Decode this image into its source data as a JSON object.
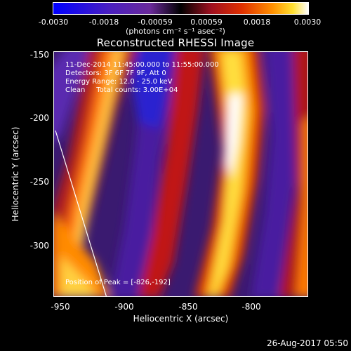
{
  "colorbar": {
    "ticks": [
      "-0.0030",
      "-0.0018",
      "-0.00059",
      "0.00059",
      "0.0018",
      "0.0030"
    ],
    "units": "(photons cm⁻² s⁻¹ asec⁻²)"
  },
  "title": "Reconstructed RHESSI Image",
  "info": {
    "time_range": "11-Dec-2014 11:45:00.000 to 11:55:00.000",
    "detectors": "Detectors: 3F 6F 7F 9F, Att 0",
    "energy": "Energy Range: 12.0 - 25.0 keV",
    "clean": "Clean     Total counts: 3.00E+04",
    "peak": "Position of Peak = [-826,-192]"
  },
  "axes": {
    "xlabel": "Heliocentric X (arcsec)",
    "ylabel": "Heliocentric Y (arcsec)",
    "xticks": [
      "-950",
      "-900",
      "-850",
      "-800"
    ],
    "yticks": [
      "-150",
      "-200",
      "-250",
      "-300"
    ]
  },
  "timestamp": "26-Aug-2017 05:50",
  "colors": {
    "background": "#000000",
    "foreground": "#ffffff"
  }
}
